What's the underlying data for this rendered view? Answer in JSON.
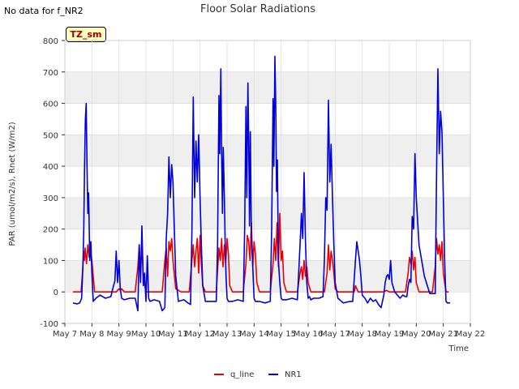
{
  "no_data_note": "No data for f_NR2",
  "tz_badge": "TZ_sm",
  "colors": {
    "q_line": "#ee0000",
    "NR1": "#0000dd",
    "band": "#efefef",
    "grid": "#dddddd"
  },
  "chart_data": {
    "type": "line",
    "title": "Floor Solar Radiations",
    "xlabel": "Time",
    "ylabel": "PAR (umol/m2/s), Rnet (W/m2)",
    "xlim": [
      7,
      22
    ],
    "ylim": [
      -100,
      800
    ],
    "x_ticks": [
      7,
      8,
      9,
      10,
      11,
      12,
      13,
      14,
      15,
      16,
      17,
      18,
      19,
      20,
      21,
      22
    ],
    "x_tick_labels": [
      "May 7",
      "May 8",
      "May 9",
      "May 10",
      "May 11",
      "May 12",
      "May 13",
      "May 14",
      "May 15",
      "May 16",
      "May 17",
      "May 18",
      "May 19",
      "May 20",
      "May 21",
      "May 22"
    ],
    "y_ticks": [
      -100,
      0,
      100,
      200,
      300,
      400,
      500,
      600,
      700,
      800
    ],
    "y_tick_labels": [
      "-100",
      "0",
      "100",
      "200",
      "300",
      "400",
      "500",
      "600",
      "700",
      "800"
    ],
    "legend": {
      "position": "bottom-center",
      "entries": [
        "q_line",
        "NR1"
      ]
    },
    "series": [
      {
        "name": "q_line",
        "x": [
          7.3,
          7.6,
          7.65,
          7.7,
          7.72,
          7.75,
          7.8,
          7.85,
          7.9,
          7.95,
          8.0,
          8.05,
          8.1,
          8.2,
          8.3,
          8.6,
          8.9,
          9.0,
          9.05,
          9.1,
          9.2,
          9.6,
          9.7,
          9.75,
          9.8,
          9.85,
          9.9,
          10.0,
          10.2,
          10.6,
          10.7,
          10.75,
          10.8,
          10.85,
          10.9,
          10.95,
          11.0,
          11.1,
          11.3,
          11.6,
          11.75,
          11.8,
          11.85,
          11.9,
          11.95,
          12.0,
          12.05,
          12.1,
          12.2,
          12.6,
          12.7,
          12.75,
          12.8,
          12.85,
          12.9,
          12.95,
          13.0,
          13.05,
          13.1,
          13.2,
          13.6,
          13.7,
          13.75,
          13.8,
          13.85,
          13.9,
          13.95,
          14.0,
          14.05,
          14.1,
          14.2,
          14.6,
          14.7,
          14.75,
          14.8,
          14.85,
          14.9,
          14.95,
          15.0,
          15.05,
          15.1,
          15.2,
          15.6,
          15.7,
          15.75,
          15.8,
          15.85,
          15.9,
          15.95,
          16.0,
          16.1,
          16.6,
          16.7,
          16.75,
          16.8,
          16.85,
          16.9,
          16.95,
          17.0,
          17.1,
          17.7,
          17.75,
          17.8,
          17.85,
          18.8,
          18.9,
          19.0,
          19.1,
          19.6,
          19.7,
          19.75,
          19.8,
          19.85,
          19.9,
          19.95,
          20.0,
          20.1,
          20.6,
          20.7,
          20.75,
          20.8,
          20.85,
          20.9,
          20.95,
          21.0,
          21.1,
          21.2
        ],
        "y": [
          0,
          0,
          60,
          130,
          100,
          140,
          90,
          150,
          110,
          130,
          100,
          50,
          0,
          0,
          0,
          0,
          0,
          10,
          5,
          10,
          0,
          0,
          80,
          150,
          60,
          160,
          50,
          0,
          0,
          0,
          100,
          140,
          50,
          160,
          130,
          170,
          100,
          10,
          0,
          0,
          150,
          80,
          130,
          170,
          60,
          180,
          90,
          20,
          0,
          0,
          140,
          100,
          170,
          80,
          150,
          90,
          170,
          120,
          20,
          0,
          0,
          90,
          180,
          160,
          100,
          220,
          80,
          160,
          120,
          30,
          0,
          0,
          90,
          170,
          100,
          220,
          80,
          250,
          100,
          130,
          30,
          0,
          0,
          60,
          80,
          40,
          100,
          50,
          80,
          30,
          0,
          0,
          60,
          150,
          70,
          130,
          100,
          60,
          10,
          0,
          0,
          20,
          10,
          0,
          0,
          5,
          0,
          0,
          0,
          60,
          110,
          90,
          130,
          70,
          110,
          30,
          0,
          0,
          80,
          170,
          120,
          150,
          100,
          160,
          60,
          0,
          0
        ]
      },
      {
        "name": "NR1",
        "x": [
          7.3,
          7.45,
          7.55,
          7.62,
          7.67,
          7.7,
          7.73,
          7.76,
          7.79,
          7.82,
          7.85,
          7.88,
          7.92,
          7.96,
          8.0,
          8.05,
          8.15,
          8.3,
          8.5,
          8.7,
          8.8,
          8.85,
          8.9,
          8.95,
          9.0,
          9.05,
          9.1,
          9.2,
          9.4,
          9.6,
          9.7,
          9.75,
          9.8,
          9.85,
          9.9,
          9.95,
          10.0,
          10.05,
          10.1,
          10.15,
          10.3,
          10.5,
          10.6,
          10.7,
          10.75,
          10.8,
          10.85,
          10.9,
          10.95,
          11.0,
          11.05,
          11.1,
          11.2,
          11.4,
          11.55,
          11.65,
          11.7,
          11.75,
          11.8,
          11.85,
          11.9,
          11.95,
          12.0,
          12.05,
          12.1,
          12.2,
          12.4,
          12.6,
          12.65,
          12.7,
          12.73,
          12.77,
          12.8,
          12.83,
          12.86,
          12.9,
          12.93,
          12.96,
          13.0,
          13.05,
          13.1,
          13.2,
          13.4,
          13.6,
          13.65,
          13.7,
          13.73,
          13.77,
          13.8,
          13.83,
          13.86,
          13.9,
          13.95,
          14.0,
          14.05,
          14.1,
          14.2,
          14.4,
          14.6,
          14.65,
          14.7,
          14.73,
          14.77,
          14.8,
          14.83,
          14.86,
          14.9,
          14.95,
          15.0,
          15.05,
          15.1,
          15.2,
          15.4,
          15.6,
          15.7,
          15.75,
          15.8,
          15.85,
          15.9,
          15.95,
          16.0,
          16.05,
          16.1,
          16.2,
          16.4,
          16.55,
          16.6,
          16.65,
          16.7,
          16.75,
          16.8,
          16.85,
          16.9,
          16.95,
          17.0,
          17.1,
          17.3,
          17.55,
          17.65,
          17.75,
          17.8,
          17.85,
          17.9,
          17.95,
          18.0,
          18.1,
          18.2,
          18.3,
          18.4,
          18.5,
          18.6,
          18.7,
          18.8,
          18.85,
          18.9,
          18.95,
          19.0,
          19.05,
          19.1,
          19.2,
          19.4,
          19.5,
          19.6,
          19.65,
          19.7,
          19.75,
          19.8,
          19.85,
          19.9,
          19.95,
          20.0,
          20.1,
          20.3,
          20.5,
          20.6,
          20.65,
          20.7,
          20.75,
          20.8,
          20.85,
          20.9,
          20.95,
          21.0,
          21.05,
          21.1,
          21.15,
          21.25
        ],
        "y": [
          -35,
          -38,
          -35,
          -20,
          90,
          200,
          405,
          550,
          600,
          400,
          250,
          315,
          100,
          160,
          60,
          -30,
          -20,
          -10,
          -20,
          -15,
          20,
          35,
          130,
          30,
          100,
          10,
          -20,
          -25,
          -20,
          -20,
          -60,
          150,
          30,
          210,
          20,
          60,
          -30,
          115,
          -20,
          -30,
          -25,
          -30,
          -60,
          -50,
          170,
          250,
          430,
          300,
          405,
          350,
          200,
          50,
          -30,
          -25,
          -35,
          -40,
          200,
          620,
          300,
          480,
          350,
          500,
          300,
          150,
          20,
          -30,
          -30,
          -30,
          150,
          625,
          440,
          710,
          450,
          250,
          460,
          300,
          150,
          50,
          -20,
          -30,
          -30,
          -30,
          -25,
          -30,
          200,
          590,
          300,
          665,
          480,
          210,
          510,
          180,
          80,
          -20,
          -30,
          -30,
          -30,
          -35,
          -30,
          200,
          615,
          400,
          750,
          600,
          320,
          420,
          100,
          30,
          -20,
          -25,
          -25,
          -25,
          -20,
          -25,
          150,
          250,
          170,
          380,
          160,
          30,
          -20,
          -15,
          -25,
          -20,
          -20,
          -15,
          100,
          300,
          260,
          610,
          350,
          470,
          300,
          150,
          30,
          -20,
          -35,
          -30,
          -30,
          100,
          160,
          130,
          100,
          50,
          -10,
          -20,
          -35,
          -20,
          -30,
          -25,
          -40,
          -50,
          -10,
          30,
          50,
          55,
          40,
          100,
          30,
          0,
          -20,
          -10,
          -15,
          -15,
          20,
          40,
          30,
          240,
          200,
          440,
          300,
          150,
          50,
          -5,
          -5,
          -5,
          -5,
          370,
          710,
          440,
          575,
          510,
          300,
          100,
          -30,
          -35,
          -35
        ]
      }
    ]
  }
}
